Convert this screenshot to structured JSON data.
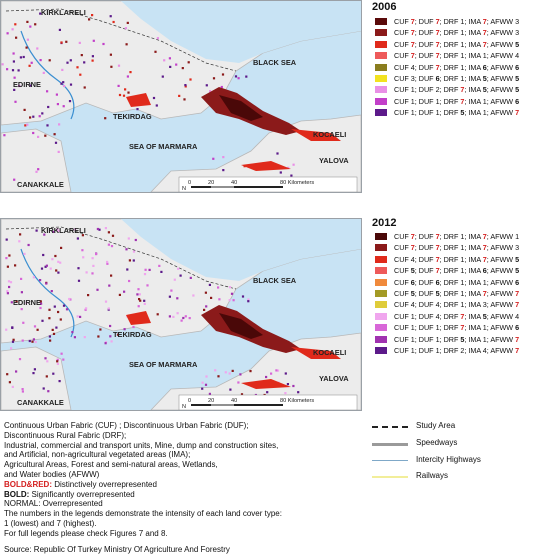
{
  "panels": [
    {
      "year": "2006",
      "labels": {
        "kirklareli": "KIRKLARELI",
        "edirne": "EDIRNE",
        "tekirdag": "TEKIRDAG",
        "canakkale": "CANAKKALE",
        "kocaeli": "KOCAELI",
        "yalova": "YALOVA",
        "black_sea": "BLACK SEA",
        "sea_of_marmara": "SEA OF MARMARA"
      },
      "scale": {
        "ticks": [
          "0",
          "20",
          "40",
          "80 Kilometers"
        ],
        "north": "N"
      },
      "legend": [
        {
          "color": "#5a0a0a",
          "cuf": "7",
          "duf": "7",
          "drf": "1",
          "ima": "7",
          "afww": "3"
        },
        {
          "color": "#8b1a1a",
          "cuf": "7",
          "duf": "7",
          "drf": "1",
          "ima": "7",
          "afww": "3"
        },
        {
          "color": "#e02a1b",
          "cuf": "7",
          "duf": "7",
          "drf": "1",
          "ima": "7",
          "afww": "5"
        },
        {
          "color": "#ee5a5a",
          "cuf": "7",
          "duf": "7",
          "drf": "1",
          "ima": "1",
          "afww": "4"
        },
        {
          "color": "#8a7d1e",
          "cuf": "4",
          "duf": "7",
          "drf": "1",
          "ima": "6",
          "afww": "6"
        },
        {
          "color": "#f2e21f",
          "cuf": "3",
          "duf": "6",
          "drf": "1",
          "ima": "5",
          "afww": "5"
        },
        {
          "color": "#e98fe6",
          "cuf": "1",
          "duf": "2",
          "drf": "7",
          "ima": "5",
          "afww": "5"
        },
        {
          "color": "#c23fc9",
          "cuf": "1",
          "duf": "1",
          "drf": "7",
          "ima": "1",
          "afww": "6"
        },
        {
          "color": "#5c1a8a",
          "cuf": "1",
          "duf": "1",
          "drf": "5",
          "ima": "1",
          "afww": "7"
        }
      ]
    },
    {
      "year": "2012",
      "labels": {
        "kirklareli": "KIRKLARELI",
        "edirne": "EDIRNE",
        "tekirdag": "TEKIRDAG",
        "canakkale": "CANAKKALE",
        "kocaeli": "KOCAELI",
        "yalova": "YALOVA",
        "black_sea": "BLACK SEA",
        "sea_of_marmara": "SEA OF MARMARA"
      },
      "scale": {
        "ticks": [
          "0",
          "20",
          "40",
          "80 Kilometers"
        ],
        "north": "N"
      },
      "legend": [
        {
          "color": "#4a0808",
          "cuf": "7",
          "duf": "7",
          "drf": "1",
          "ima": "7",
          "afww": "1"
        },
        {
          "color": "#8b1a1a",
          "cuf": "7",
          "duf": "7",
          "drf": "1",
          "ima": "7",
          "afww": "3"
        },
        {
          "color": "#e02a1b",
          "cuf": "4",
          "duf": "7",
          "drf": "1",
          "ima": "7",
          "afww": "5"
        },
        {
          "color": "#ee5a5a",
          "cuf": "5",
          "duf": "7",
          "drf": "1",
          "ima": "6",
          "afww": "5"
        },
        {
          "color": "#f08a3c",
          "cuf": "6",
          "duf": "6",
          "drf": "1",
          "ima": "1",
          "afww": "6"
        },
        {
          "color": "#a39a25",
          "cuf": "5",
          "duf": "5",
          "drf": "1",
          "ima": "7",
          "afww": "7"
        },
        {
          "color": "#dfcc3a",
          "cuf": "4",
          "duf": "4",
          "drf": "1",
          "ima": "3",
          "afww": "7"
        },
        {
          "color": "#f0a6ee",
          "cuf": "1",
          "duf": "4",
          "drf": "7",
          "ima": "5",
          "afww": "4"
        },
        {
          "color": "#d867d8",
          "cuf": "1",
          "duf": "1",
          "drf": "7",
          "ima": "1",
          "afww": "6"
        },
        {
          "color": "#a032b0",
          "cuf": "1",
          "duf": "1",
          "drf": "5",
          "ima": "1",
          "afww": "7"
        },
        {
          "color": "#5c1a8a",
          "cuf": "1",
          "duf": "1",
          "drf": "2",
          "ima": "4",
          "afww": "7"
        }
      ]
    }
  ],
  "legend_terms": {
    "cuf": "CUF",
    "duf": "DUF",
    "drf": "DRF",
    "ima": "IMA",
    "afww": "AFWW"
  },
  "notes": {
    "l1": "Continuous Urban Fabric (CUF) ; Discontinuous Urban Fabric (DUF);",
    "l2": "Discontinuous Rural Fabric (DRF);",
    "l3": "Industrial, commercial and transport units, Mine, dump and construction sites,",
    "l4": "and Artificial, non-agricultural vegetated areas (IMA);",
    "l5": "Agricultural Areas, Forest and semi-natural areas, Wetlands,",
    "l6": "and Water bodies (AFWW)",
    "boldred_label": "BOLD&RED:",
    "boldred_text": " Distinctively overrepresented",
    "bold_label": "BOLD:",
    "bold_text": " Significantly overrepresented",
    "normal_label": "NORMAL:",
    "normal_text": " Overrepresented",
    "l10": "The numbers in the legends demonstrate the intensity of each land cover type:",
    "l11": "1 (lowest) and 7 (highest).",
    "l12": "For full legends please check Figures 7 and 8.",
    "source": "Source: Republic Of Turkey Ministry Of Agriculture And Forestry"
  },
  "line_key": [
    {
      "label": "Study Area",
      "style": "dashdot"
    },
    {
      "label": "Speedways",
      "style": "gray-thick"
    },
    {
      "label": "Intercity Highways",
      "style": "blue-thin"
    },
    {
      "label": "Railways",
      "style": "yellow"
    }
  ]
}
